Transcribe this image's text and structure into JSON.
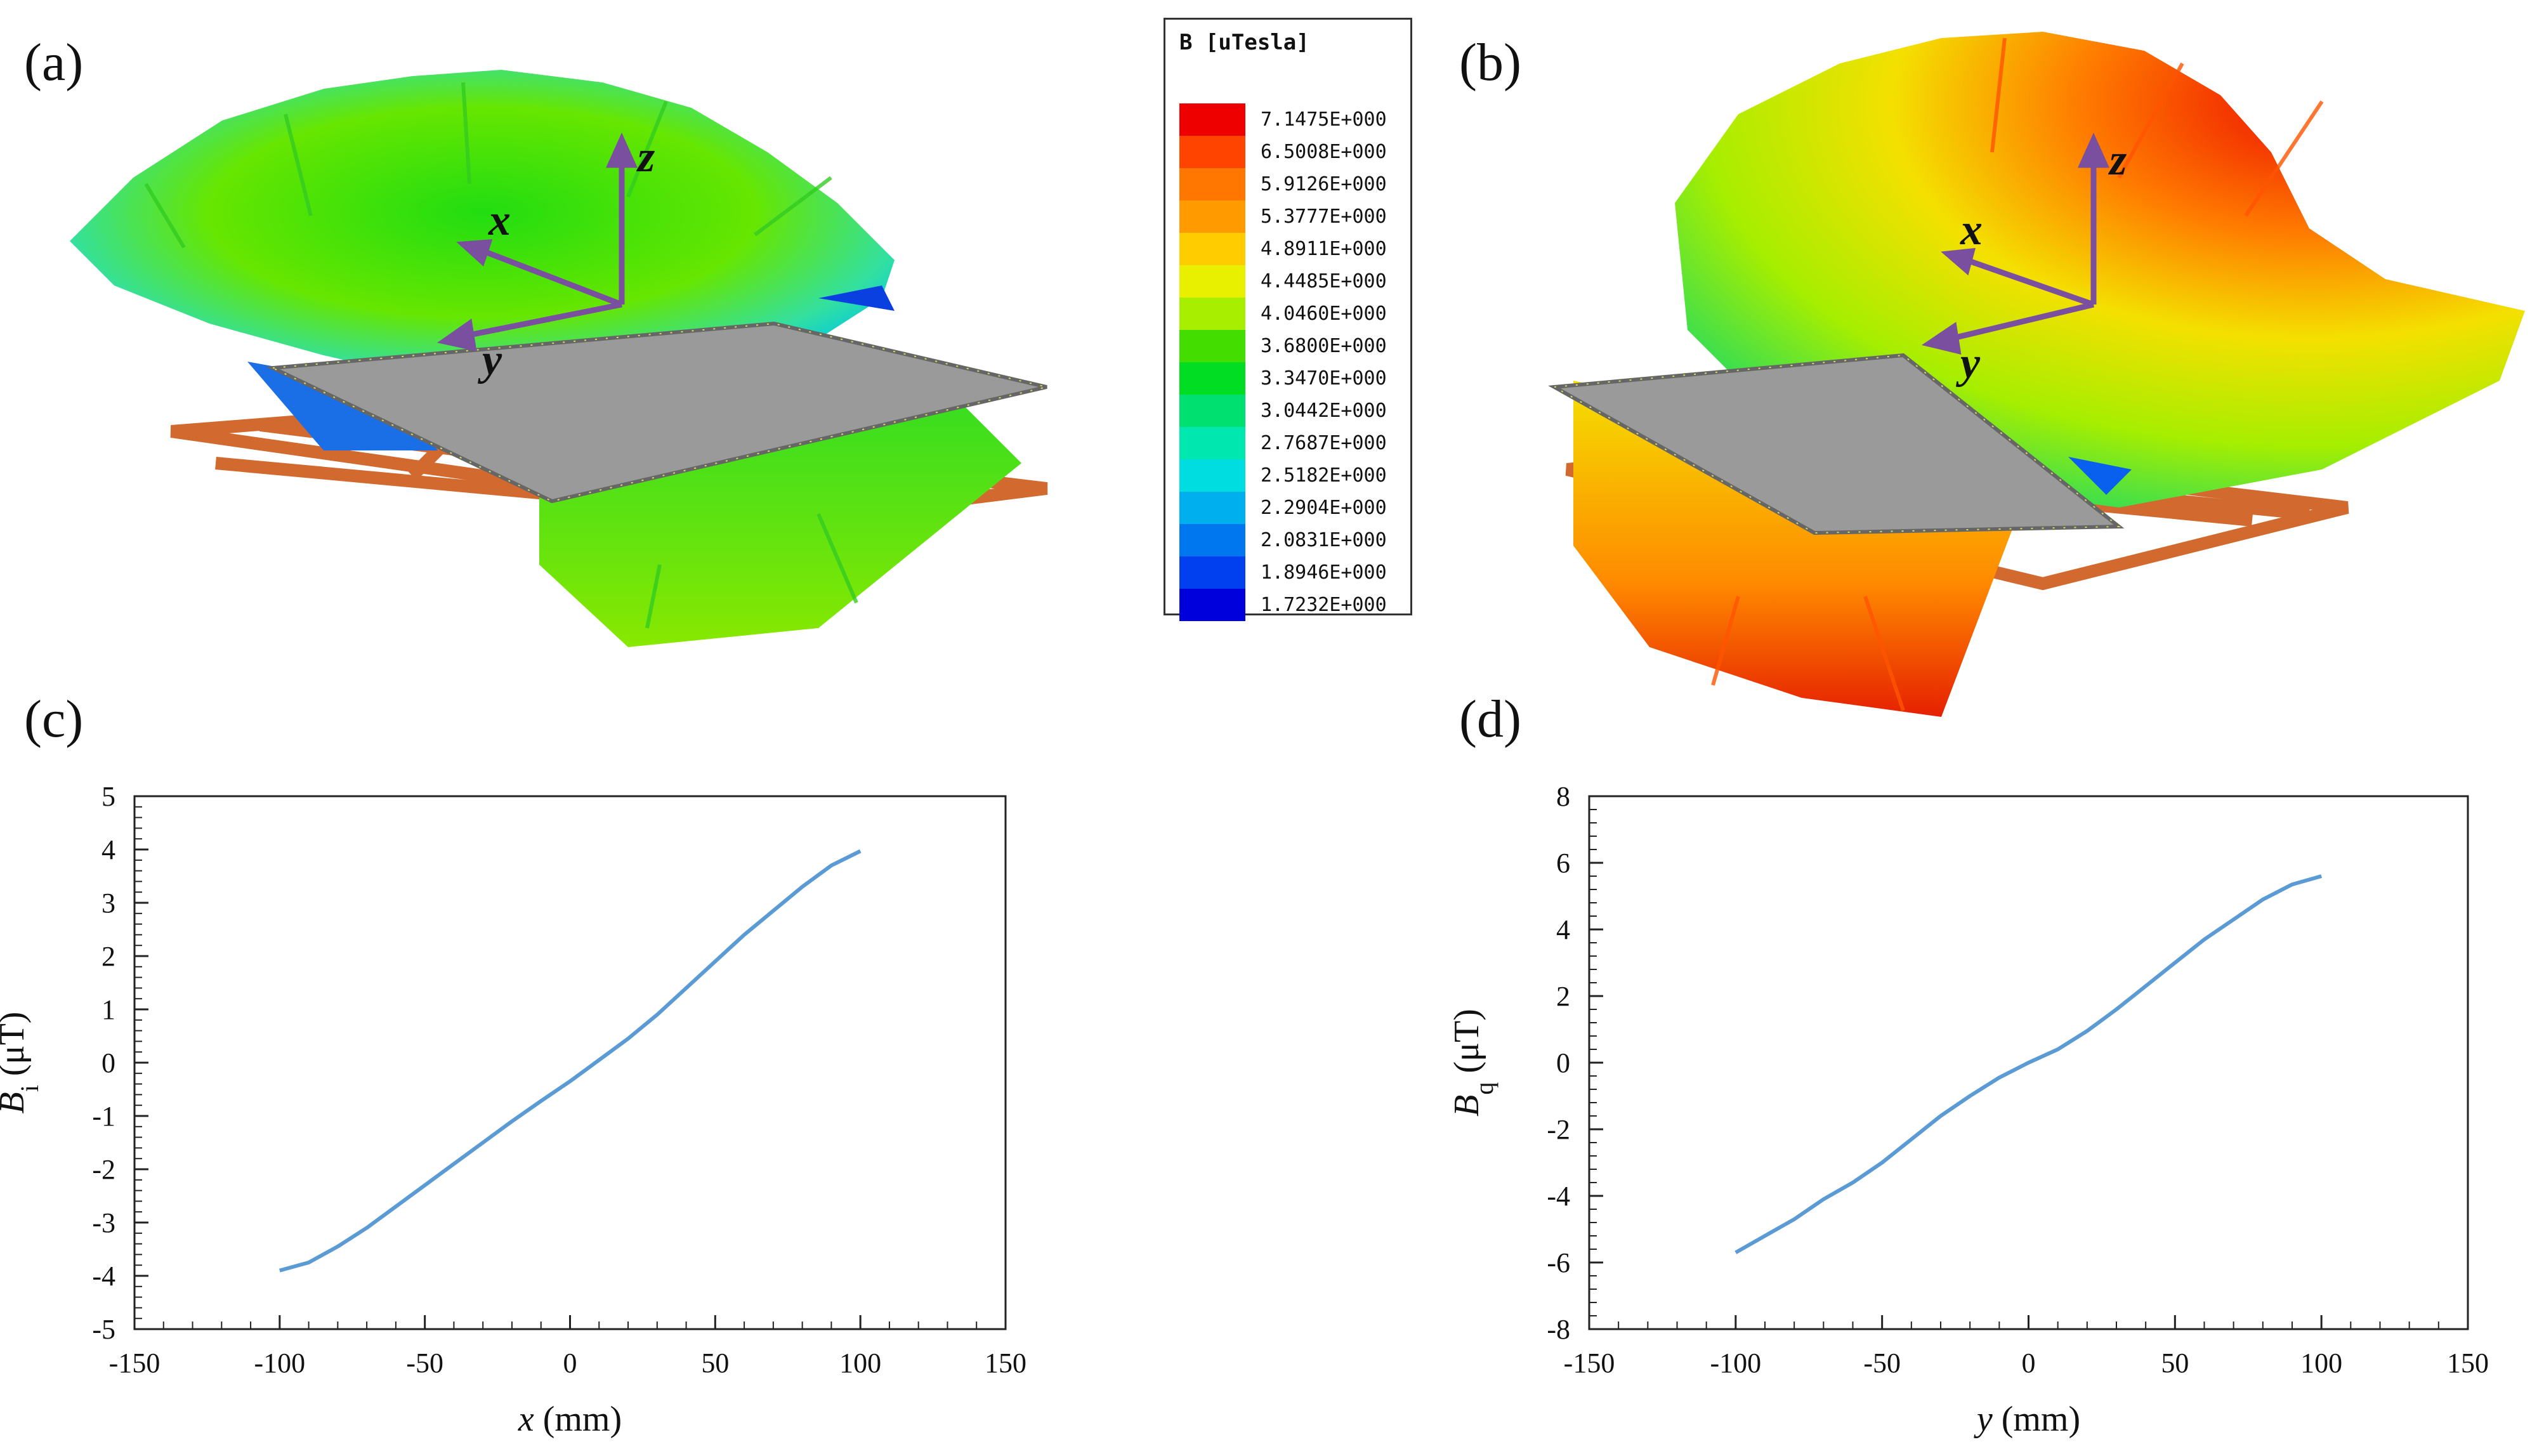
{
  "panels": {
    "a": "(a)",
    "b": "(b)",
    "c": "(c)",
    "d": "(d)"
  },
  "axes3d": {
    "x": "x",
    "y": "y",
    "z": "z"
  },
  "legend": {
    "title": "B [uTesla]",
    "entries": [
      {
        "value": "7.1475E+000",
        "color": "#ee0000"
      },
      {
        "value": "6.5008E+000",
        "color": "#ff4400"
      },
      {
        "value": "5.9126E+000",
        "color": "#ff7700"
      },
      {
        "value": "5.3777E+000",
        "color": "#ff9a00"
      },
      {
        "value": "4.8911E+000",
        "color": "#ffcc00"
      },
      {
        "value": "4.4485E+000",
        "color": "#e8f000"
      },
      {
        "value": "4.0460E+000",
        "color": "#a8ee00"
      },
      {
        "value": "3.6800E+000",
        "color": "#44dd00"
      },
      {
        "value": "3.3470E+000",
        "color": "#00dd22"
      },
      {
        "value": "3.0442E+000",
        "color": "#00e070"
      },
      {
        "value": "2.7687E+000",
        "color": "#00e8b0"
      },
      {
        "value": "2.5182E+000",
        "color": "#00dde0"
      },
      {
        "value": "2.2904E+000",
        "color": "#00b0ee"
      },
      {
        "value": "2.0831E+000",
        "color": "#0077ee"
      },
      {
        "value": "1.8946E+000",
        "color": "#0040ee"
      },
      {
        "value": "1.7232E+000",
        "color": "#0000dd"
      }
    ]
  },
  "chart_data": [
    {
      "type": "line",
      "title": "",
      "xlabel": "x (mm)",
      "ylabel_main": "B",
      "ylabel_sub": "i",
      "ylabel_unit": " (μT)",
      "xlim": [
        -150,
        150
      ],
      "ylim": [
        -5,
        5
      ],
      "xticks": [
        -150,
        -100,
        -50,
        0,
        50,
        100,
        150
      ],
      "yticks": [
        -5,
        -4,
        -3,
        -2,
        -1,
        0,
        1,
        2,
        3,
        4,
        5
      ],
      "series": [
        {
          "name": "Bi",
          "color": "#5b9bd5",
          "x": [
            -100,
            -90,
            -80,
            -70,
            -60,
            -50,
            -40,
            -30,
            -20,
            -10,
            0,
            10,
            20,
            30,
            40,
            50,
            60,
            70,
            80,
            90,
            100
          ],
          "y": [
            -3.9,
            -3.75,
            -3.45,
            -3.1,
            -2.7,
            -2.3,
            -1.9,
            -1.5,
            -1.1,
            -0.72,
            -0.35,
            0.05,
            0.45,
            0.9,
            1.4,
            1.9,
            2.4,
            2.85,
            3.3,
            3.7,
            3.97
          ]
        }
      ]
    },
    {
      "type": "line",
      "title": "",
      "xlabel": "y (mm)",
      "ylabel_main": "B",
      "ylabel_sub": "q",
      "ylabel_unit": " (μT)",
      "xlim": [
        -150,
        150
      ],
      "ylim": [
        -8,
        8
      ],
      "xticks": [
        -150,
        -100,
        -50,
        0,
        50,
        100,
        150
      ],
      "yticks": [
        -8,
        -6,
        -4,
        -2,
        0,
        2,
        4,
        6,
        8
      ],
      "series": [
        {
          "name": "Bq",
          "color": "#5b9bd5",
          "x": [
            -100,
            -90,
            -80,
            -70,
            -60,
            -50,
            -40,
            -30,
            -20,
            -10,
            0,
            10,
            20,
            30,
            40,
            50,
            60,
            70,
            80,
            90,
            100
          ],
          "y": [
            -5.7,
            -5.2,
            -4.7,
            -4.1,
            -3.6,
            -3.0,
            -2.3,
            -1.6,
            -1.0,
            -0.45,
            0.0,
            0.4,
            0.95,
            1.6,
            2.3,
            3.0,
            3.7,
            4.3,
            4.9,
            5.35,
            5.6
          ]
        }
      ]
    }
  ]
}
